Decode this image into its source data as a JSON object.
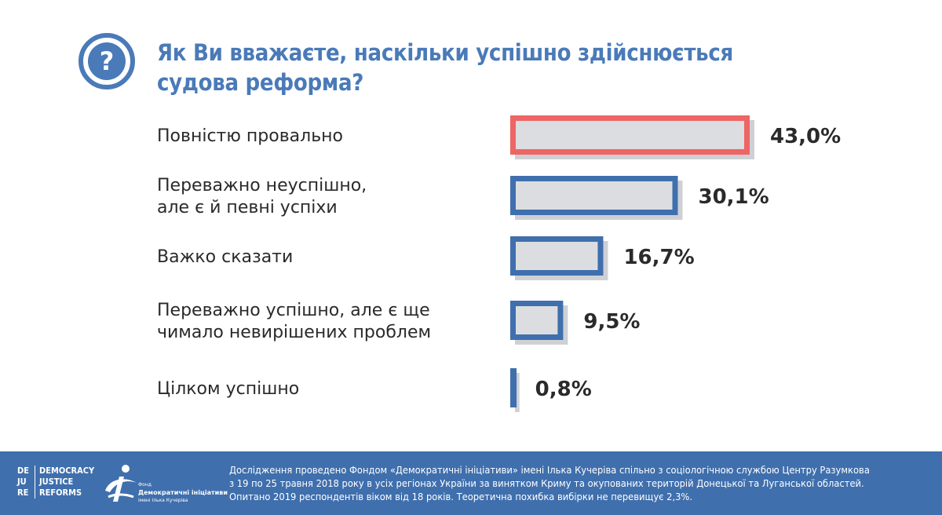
{
  "header": {
    "icon_glyph": "?",
    "title_line1": "Як Ви вважаєте, наскільки успішно здійснюється",
    "title_line2": "судова реформа?"
  },
  "chart_data": {
    "type": "bar",
    "orientation": "horizontal",
    "categories": [
      [
        "Повністю провально"
      ],
      [
        "Переважно неуспішно,",
        "але є й  певні успіхи"
      ],
      [
        "Важко сказати"
      ],
      [
        "Переважно успішно, але є ще",
        "чимало невирішених проблем"
      ],
      [
        "Цілком успішно"
      ]
    ],
    "values": [
      43.0,
      30.1,
      16.7,
      9.5,
      0.8
    ],
    "value_labels": [
      "43,0%",
      "30,1%",
      "16,7%",
      "9,5%",
      "0,8%"
    ],
    "highlight_index": 0,
    "colors": {
      "default": "#3f6fad",
      "highlight": "#ee6565",
      "fill": "#dcdde0",
      "shadow": "#cfd0d4"
    }
  },
  "footer": {
    "logo1": {
      "col1": [
        "DE",
        "JU",
        "RE"
      ],
      "col2": [
        "DEMOCRACY",
        "JUSTICE",
        "REFORMS"
      ]
    },
    "logo2": {
      "icon": "foundation-logo-icon",
      "brand_lines": [
        "Фонд",
        "Демократичні ініціативи",
        "імені Ілька Кучеріва"
      ]
    },
    "note_lines": [
      "Дослідження проведено Фондом «Демократичні ініціативи» імені Ілька Кучеріва спільно з соціологічною службою Центру Разумкова",
      "з 19 по 25 травня 2018 року в усіх регіонах України за винятком Криму та окупованих територій Донецької та Луганської областей.",
      "Опитано 2019 респондентів віком від 18 років. Теоретична похибка вибірки не перевищує 2,3%."
    ]
  }
}
